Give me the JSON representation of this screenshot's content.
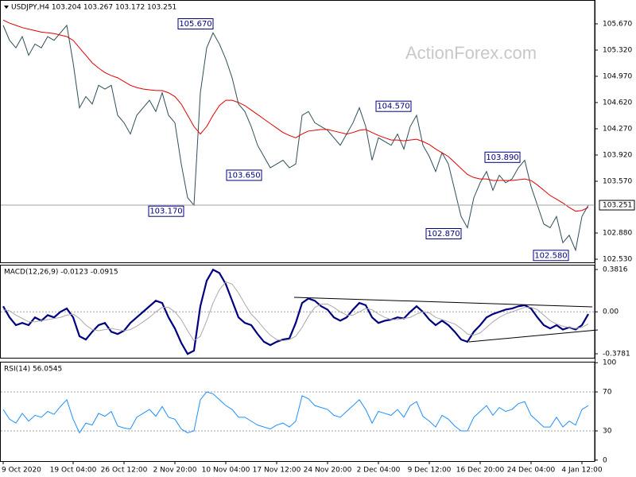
{
  "chart_data": [
    {
      "type": "line",
      "title": "USDJPY,H4  103.204 103.267 103.172 103.251",
      "watermark": "ActionForex.com",
      "ylim": [
        102.488,
        105.988
      ],
      "grid": false,
      "yticks": [
        {
          "value": 105.67,
          "label": "105.670"
        },
        {
          "value": 105.32,
          "label": "105.320"
        },
        {
          "value": 104.97,
          "label": "104.970"
        },
        {
          "value": 104.62,
          "label": "104.620"
        },
        {
          "value": 104.27,
          "label": "104.270"
        },
        {
          "value": 103.92,
          "label": "103.920"
        },
        {
          "value": 103.57,
          "label": "103.570"
        },
        {
          "value": 102.88,
          "label": "102.880"
        },
        {
          "value": 102.53,
          "label": "102.530"
        }
      ],
      "last": 103.251,
      "categories": [
        "9 Oct 2020",
        null,
        null,
        null,
        null,
        null,
        null,
        null,
        null,
        null,
        null,
        "19 Oct 04:00",
        null,
        null,
        null,
        null,
        null,
        null,
        null,
        "26 Oct 12:00",
        null,
        null,
        null,
        null,
        null,
        null,
        null,
        "2 Nov 20:00",
        null,
        null,
        null,
        null,
        null,
        null,
        null,
        "10 Nov 04:00",
        null,
        null,
        null,
        null,
        null,
        null,
        null,
        "17 Nov 12:00",
        null,
        null,
        null,
        null,
        null,
        null,
        null,
        "24 Nov 20:00",
        null,
        null,
        null,
        null,
        null,
        null,
        null,
        "2 Dec 04:00",
        null,
        null,
        null,
        null,
        null,
        null,
        null,
        "9 Dec 12:00",
        null,
        null,
        null,
        null,
        null,
        null,
        null,
        "16 Dec 20:00",
        null,
        null,
        null,
        null,
        null,
        null,
        null,
        "24 Dec 04:00",
        null,
        null,
        null,
        null,
        null,
        null,
        null,
        "4 Jan 12:00",
        null
      ],
      "series": [
        {
          "color": "#2f4f5a",
          "values": [
            105.65,
            105.45,
            105.35,
            105.5,
            105.25,
            105.4,
            105.35,
            105.5,
            105.45,
            105.55,
            105.65,
            105.15,
            104.55,
            104.7,
            104.6,
            104.85,
            104.8,
            104.85,
            104.45,
            104.35,
            104.2,
            104.45,
            104.55,
            104.65,
            104.5,
            104.75,
            104.45,
            104.35,
            103.8,
            103.35,
            103.25,
            104.75,
            105.35,
            105.55,
            105.4,
            105.2,
            104.95,
            104.6,
            104.5,
            104.3,
            104.05,
            103.9,
            103.75,
            103.8,
            103.85,
            103.75,
            103.8,
            104.45,
            104.5,
            104.35,
            104.3,
            104.25,
            104.15,
            104.05,
            104.2,
            104.35,
            104.55,
            104.3,
            103.85,
            104.15,
            104.1,
            104.05,
            104.2,
            104.0,
            104.3,
            104.45,
            104.05,
            103.9,
            103.7,
            103.95,
            103.8,
            103.45,
            103.1,
            102.95,
            103.35,
            103.55,
            103.7,
            103.45,
            103.65,
            103.55,
            103.6,
            103.75,
            103.85,
            103.5,
            103.25,
            103.0,
            102.95,
            103.1,
            102.75,
            102.85,
            102.65,
            103.1,
            103.25
          ]
        },
        {
          "color": "#e00000",
          "values": [
            105.72,
            105.68,
            105.65,
            105.62,
            105.6,
            105.58,
            105.56,
            105.55,
            105.54,
            105.52,
            105.5,
            105.45,
            105.35,
            105.25,
            105.15,
            105.08,
            105.02,
            104.98,
            104.95,
            104.9,
            104.85,
            104.82,
            104.8,
            104.79,
            104.78,
            104.78,
            104.75,
            104.7,
            104.6,
            104.45,
            104.3,
            104.2,
            104.3,
            104.45,
            104.58,
            104.65,
            104.65,
            104.62,
            104.58,
            104.52,
            104.46,
            104.4,
            104.34,
            104.28,
            104.22,
            104.18,
            104.15,
            104.2,
            104.24,
            104.25,
            104.26,
            104.26,
            104.24,
            104.22,
            104.2,
            104.22,
            104.25,
            104.26,
            104.22,
            104.18,
            104.15,
            104.12,
            104.12,
            104.11,
            104.12,
            104.13,
            104.1,
            104.06,
            104.0,
            103.95,
            103.9,
            103.82,
            103.74,
            103.66,
            103.62,
            103.6,
            103.6,
            103.58,
            103.58,
            103.58,
            103.58,
            103.59,
            103.6,
            103.58,
            103.52,
            103.45,
            103.38,
            103.33,
            103.28,
            103.22,
            103.17,
            103.18,
            103.22
          ]
        }
      ],
      "annotations": [
        {
          "value": 105.67,
          "label": "105.670"
        },
        {
          "value": 103.17,
          "label": "103.170"
        },
        {
          "value": 103.65,
          "label": "103.650"
        },
        {
          "value": 104.57,
          "label": "104.570"
        },
        {
          "value": 102.87,
          "label": "102.870"
        },
        {
          "value": 103.89,
          "label": "103.890"
        },
        {
          "value": 102.58,
          "label": "102.580"
        }
      ]
    },
    {
      "type": "line",
      "title": "MACD(12,26,9) -0.0123 -0.0915",
      "ylim": [
        -0.414,
        0.4246
      ],
      "grid": true,
      "yticks": [
        0.3816,
        {
          "value": 0,
          "label": "0.00"
        },
        -0.3781
      ],
      "series": [
        {
          "color": "#000080",
          "values": [
            0.05,
            -0.05,
            -0.12,
            -0.1,
            -0.12,
            -0.05,
            -0.08,
            -0.03,
            -0.05,
            0.0,
            0.03,
            -0.05,
            -0.22,
            -0.25,
            -0.18,
            -0.12,
            -0.1,
            -0.18,
            -0.2,
            -0.17,
            -0.1,
            -0.05,
            0.0,
            0.05,
            0.1,
            0.08,
            -0.05,
            -0.15,
            -0.28,
            -0.38,
            -0.35,
            0.05,
            0.28,
            0.38,
            0.35,
            0.25,
            0.1,
            -0.05,
            -0.1,
            -0.12,
            -0.2,
            -0.27,
            -0.3,
            -0.27,
            -0.25,
            -0.24,
            -0.1,
            0.08,
            0.12,
            0.1,
            0.05,
            0.02,
            -0.05,
            -0.08,
            -0.05,
            0.02,
            0.08,
            0.06,
            -0.05,
            -0.1,
            -0.08,
            -0.07,
            -0.05,
            -0.06,
            0.0,
            0.05,
            0.0,
            -0.07,
            -0.12,
            -0.08,
            -0.12,
            -0.18,
            -0.25,
            -0.27,
            -0.18,
            -0.12,
            -0.05,
            -0.02,
            0.0,
            0.02,
            0.03,
            0.05,
            0.06,
            0.03,
            -0.05,
            -0.12,
            -0.15,
            -0.12,
            -0.16,
            -0.14,
            -0.16,
            -0.12,
            -0.02
          ]
        },
        {
          "color": "#a9a9a9",
          "values": [
            0.02,
            0.01,
            -0.03,
            -0.06,
            -0.09,
            -0.09,
            -0.08,
            -0.07,
            -0.06,
            -0.05,
            -0.03,
            -0.02,
            -0.06,
            -0.12,
            -0.16,
            -0.17,
            -0.16,
            -0.15,
            -0.16,
            -0.17,
            -0.16,
            -0.13,
            -0.09,
            -0.05,
            0.0,
            0.04,
            0.04,
            0.0,
            -0.07,
            -0.17,
            -0.26,
            -0.22,
            -0.08,
            0.08,
            0.2,
            0.27,
            0.25,
            0.17,
            0.07,
            -0.02,
            -0.08,
            -0.15,
            -0.21,
            -0.25,
            -0.26,
            -0.25,
            -0.22,
            -0.14,
            -0.04,
            0.04,
            0.07,
            0.07,
            0.04,
            0.0,
            -0.03,
            -0.03,
            0.0,
            0.03,
            0.02,
            -0.02,
            -0.05,
            -0.07,
            -0.07,
            -0.06,
            -0.05,
            -0.02,
            0.0,
            -0.01,
            -0.05,
            -0.07,
            -0.09,
            -0.11,
            -0.15,
            -0.2,
            -0.21,
            -0.19,
            -0.14,
            -0.09,
            -0.05,
            -0.02,
            0.0,
            0.02,
            0.04,
            0.04,
            0.02,
            -0.03,
            -0.08,
            -0.11,
            -0.13,
            -0.14,
            -0.15,
            -0.14,
            -0.11
          ]
        }
      ]
    },
    {
      "type": "line",
      "title": "RSI(14) 56.0545",
      "ylim": [
        -1,
        101
      ],
      "grid": true,
      "yticks": [
        100,
        70,
        30,
        0
      ],
      "series": [
        {
          "color": "#1e90ff",
          "values": [
            52,
            42,
            38,
            48,
            40,
            46,
            44,
            50,
            47,
            55,
            62,
            42,
            28,
            38,
            36,
            48,
            45,
            50,
            35,
            33,
            32,
            44,
            48,
            52,
            45,
            55,
            44,
            42,
            32,
            28,
            30,
            62,
            70,
            68,
            62,
            56,
            52,
            44,
            44,
            40,
            36,
            34,
            32,
            36,
            38,
            34,
            40,
            66,
            63,
            56,
            54,
            52,
            46,
            44,
            50,
            56,
            62,
            52,
            38,
            50,
            48,
            46,
            52,
            44,
            56,
            60,
            45,
            40,
            34,
            46,
            42,
            35,
            30,
            30,
            44,
            50,
            56,
            46,
            54,
            50,
            52,
            58,
            60,
            46,
            40,
            34,
            34,
            44,
            34,
            40,
            36,
            52,
            56
          ]
        }
      ]
    }
  ]
}
